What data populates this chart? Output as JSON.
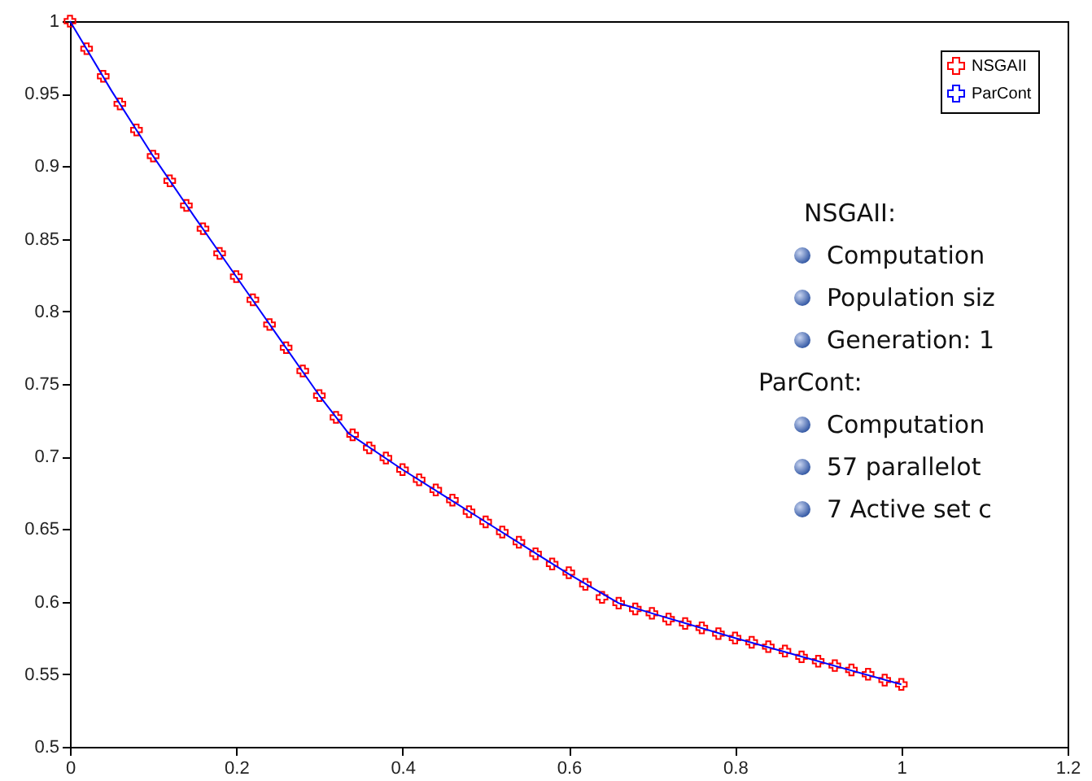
{
  "chart_data": {
    "type": "scatter",
    "xlim": [
      0,
      1.2
    ],
    "ylim": [
      0.5,
      1
    ],
    "xticks": [
      0,
      0.2,
      0.4,
      0.6,
      0.8,
      1,
      1.2
    ],
    "yticks": [
      0.5,
      0.55,
      0.6,
      0.65,
      0.7,
      0.75,
      0.8,
      0.85,
      0.9,
      0.95,
      1
    ],
    "grid": false,
    "legend": "top right",
    "series": [
      {
        "name": "NSGAII",
        "marker": "cross",
        "color": "#ff0000",
        "x": [
          0,
          0.02,
          0.04,
          0.06,
          0.08,
          0.1,
          0.12,
          0.14,
          0.16,
          0.18,
          0.2,
          0.22,
          0.24,
          0.26,
          0.28,
          0.3,
          0.32,
          0.34,
          0.36,
          0.38,
          0.4,
          0.42,
          0.44,
          0.46,
          0.48,
          0.5,
          0.52,
          0.54,
          0.56,
          0.58,
          0.6,
          0.62,
          0.64,
          0.66,
          0.68,
          0.7,
          0.72,
          0.74,
          0.76,
          0.78,
          0.8,
          0.82,
          0.84,
          0.86,
          0.88,
          0.9,
          0.92,
          0.94,
          0.96,
          0.98,
          1
        ],
        "values": [
          1,
          0.981,
          0.962,
          0.943,
          0.925,
          0.907,
          0.89,
          0.873,
          0.857,
          0.84,
          0.824,
          0.808,
          0.791,
          0.775,
          0.759,
          0.742,
          0.727,
          0.715,
          0.706,
          0.699,
          0.691,
          0.684,
          0.677,
          0.67,
          0.662,
          0.655,
          0.648,
          0.641,
          0.633,
          0.626,
          0.62,
          0.612,
          0.603,
          0.599,
          0.595,
          0.592,
          0.588,
          0.585,
          0.582,
          0.578,
          0.575,
          0.572,
          0.569,
          0.566,
          0.562,
          0.559,
          0.556,
          0.553,
          0.55,
          0.546,
          0.543
        ]
      },
      {
        "name": "ParCont",
        "type": "line",
        "color": "#0000ff",
        "x": [
          0,
          0.05,
          0.1,
          0.15,
          0.2,
          0.25,
          0.3,
          0.335,
          0.4,
          0.45,
          0.5,
          0.55,
          0.6,
          0.66,
          0.7,
          0.8,
          0.9,
          1
        ],
        "values": [
          1,
          0.952,
          0.907,
          0.865,
          0.824,
          0.783,
          0.742,
          0.716,
          0.691,
          0.673,
          0.655,
          0.637,
          0.619,
          0.599,
          0.592,
          0.575,
          0.559,
          0.543
        ]
      }
    ],
    "annotations": [
      "NSGAII:",
      "Computation",
      "Population siz",
      "Generation: 1",
      "ParCont:",
      "Computation",
      "57 parallelot",
      "7 Active set c"
    ]
  }
}
